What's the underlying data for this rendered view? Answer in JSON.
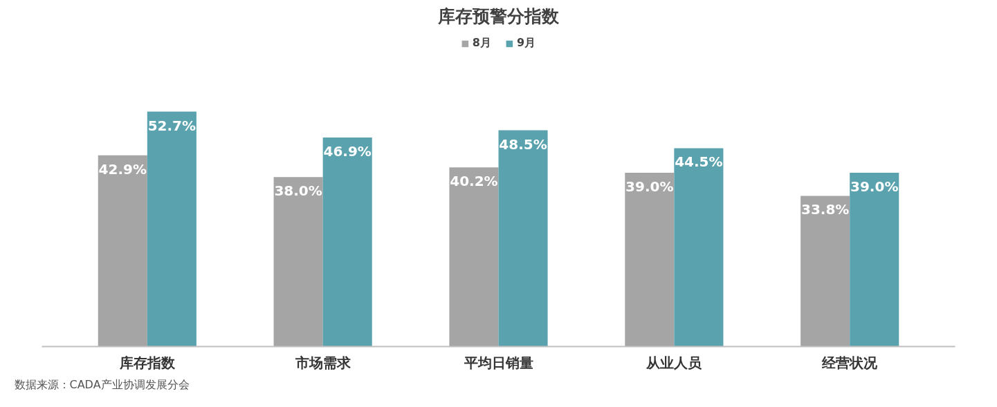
{
  "chart_data": {
    "type": "bar",
    "title": "库存预警分指数",
    "categories": [
      "库存指数",
      "市场需求",
      "平均日销量",
      "从业人员",
      "经营状况"
    ],
    "series": [
      {
        "name": "8月",
        "color": "#a5a5a5",
        "values": [
          42.9,
          38.0,
          40.2,
          39.0,
          33.8
        ],
        "value_labels": [
          "42.9%",
          "38.0%",
          "40.2%",
          "39.0%",
          "33.8%"
        ]
      },
      {
        "name": "9月",
        "color": "#5aa2ae",
        "values": [
          52.7,
          46.9,
          48.5,
          44.5,
          39.0
        ],
        "value_labels": [
          "52.7%",
          "46.9%",
          "48.5%",
          "44.5%",
          "39.0%"
        ]
      }
    ],
    "legend": "top",
    "annotations": [
      "数据来源：CADA产业协调发展分会"
    ]
  }
}
